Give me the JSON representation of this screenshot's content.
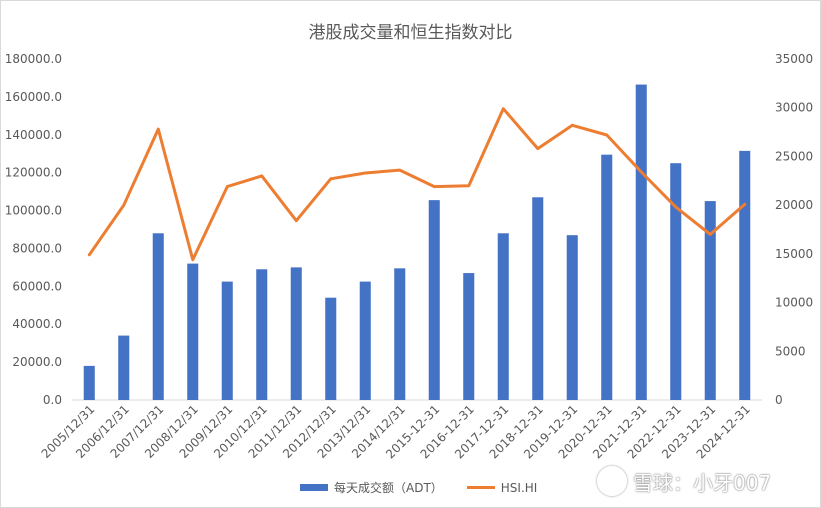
{
  "chart_data": {
    "type": "bar",
    "title": "港股成交量和恒生指数对比",
    "categories": [
      "2005/12/31",
      "2006/12/31",
      "2007/12/31",
      "2008/12/31",
      "2009/12/31",
      "2010/12/31",
      "2011/12/31",
      "2012/12/31",
      "2013/12/31",
      "2014/12/31",
      "2015-12-31",
      "2016-12-31",
      "2017-12-31",
      "2018-12-31",
      "2019-12-31",
      "2020-12-31",
      "2021-12-31",
      "2022-12-31",
      "2023-12-31",
      "2024-12-31"
    ],
    "series": [
      {
        "name": "每天成交额（ADT）",
        "type": "bar",
        "axis": "left",
        "color": "#4472c4",
        "values": [
          18000,
          34000,
          88000,
          72000,
          62500,
          69000,
          70000,
          54000,
          62500,
          69500,
          105500,
          67000,
          88000,
          107000,
          87000,
          129500,
          166500,
          125000,
          105000,
          131500
        ]
      },
      {
        "name": "HSI.HI",
        "type": "line",
        "axis": "right",
        "color": "#ed7d31",
        "values": [
          14900,
          20000,
          27800,
          14400,
          21900,
          23000,
          18400,
          22700,
          23300,
          23600,
          21900,
          22000,
          29900,
          25800,
          28200,
          27200,
          23400,
          19800,
          17000,
          20100
        ]
      }
    ],
    "y_left": {
      "min": 0,
      "max": 180000,
      "step": 20000,
      "tick_labels": [
        "0.0",
        "20000.0",
        "40000.0",
        "60000.0",
        "80000.0",
        "100000.0",
        "120000.0",
        "140000.0",
        "160000.0",
        "180000.0"
      ]
    },
    "y_right": {
      "min": 0,
      "max": 35000,
      "step": 5000,
      "tick_labels": [
        "0",
        "5000",
        "10000",
        "15000",
        "20000",
        "25000",
        "30000",
        "35000"
      ]
    },
    "xlabel": "",
    "ylabel": "",
    "grid": false,
    "legend_position": "bottom"
  },
  "legend": {
    "bar_label": "每天成交额（ADT）",
    "line_label": "HSI.HI"
  },
  "watermark": {
    "text": "雪球：小牙007"
  }
}
